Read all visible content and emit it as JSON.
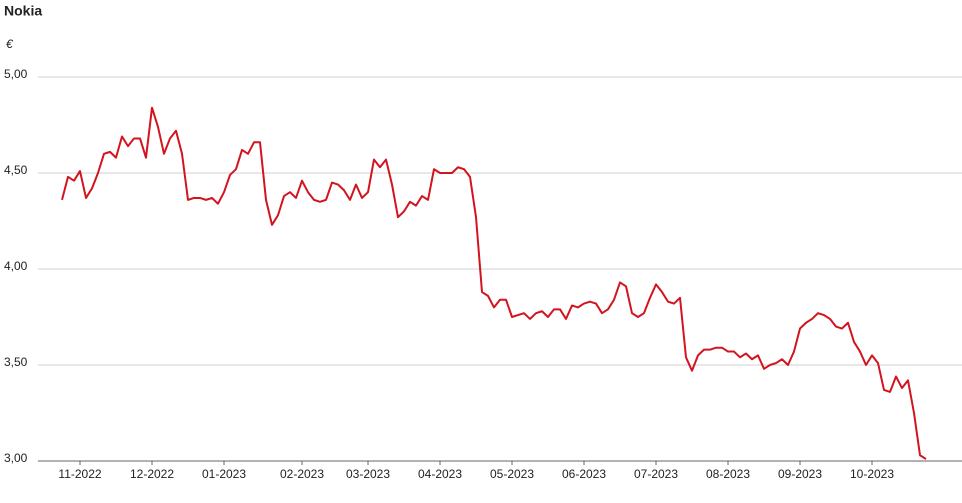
{
  "chart_data": {
    "type": "line",
    "title": "Nokia",
    "y_label": "€",
    "categories": [
      null,
      null,
      null,
      "11-2022",
      null,
      null,
      null,
      null,
      null,
      null,
      null,
      null,
      null,
      null,
      null,
      "12-2022",
      null,
      null,
      null,
      null,
      null,
      null,
      null,
      null,
      null,
      null,
      null,
      "01-2023",
      null,
      null,
      null,
      null,
      null,
      null,
      null,
      null,
      null,
      null,
      null,
      null,
      "02-2023",
      null,
      null,
      null,
      null,
      null,
      null,
      null,
      null,
      null,
      null,
      "03-2023",
      null,
      null,
      null,
      null,
      null,
      null,
      null,
      null,
      null,
      null,
      null,
      "04-2023",
      null,
      null,
      null,
      null,
      null,
      null,
      null,
      null,
      null,
      null,
      null,
      "05-2023",
      null,
      null,
      null,
      null,
      null,
      null,
      null,
      null,
      null,
      null,
      null,
      "06-2023",
      null,
      null,
      null,
      null,
      null,
      null,
      null,
      null,
      null,
      null,
      null,
      "07-2023",
      null,
      null,
      null,
      null,
      null,
      null,
      null,
      null,
      null,
      null,
      null,
      "08-2023",
      null,
      null,
      null,
      null,
      null,
      null,
      null,
      null,
      null,
      null,
      null,
      "09-2023",
      null,
      null,
      null,
      null,
      null,
      null,
      null,
      null,
      null,
      null,
      null,
      "10-2023",
      null,
      null,
      null,
      null,
      null,
      null,
      null,
      null,
      null
    ],
    "values": [
      4.36,
      4.48,
      4.46,
      4.51,
      4.37,
      4.42,
      4.5,
      4.6,
      4.61,
      4.58,
      4.69,
      4.64,
      4.68,
      4.68,
      4.58,
      4.84,
      4.74,
      4.6,
      4.68,
      4.72,
      4.6,
      4.36,
      4.37,
      4.37,
      4.36,
      4.37,
      4.34,
      4.4,
      4.49,
      4.52,
      4.62,
      4.6,
      4.66,
      4.66,
      4.36,
      4.23,
      4.28,
      4.38,
      4.4,
      4.37,
      4.46,
      4.4,
      4.36,
      4.35,
      4.36,
      4.45,
      4.44,
      4.41,
      4.36,
      4.44,
      4.37,
      4.4,
      4.57,
      4.53,
      4.57,
      4.44,
      4.27,
      4.3,
      4.35,
      4.33,
      4.38,
      4.36,
      4.52,
      4.5,
      4.5,
      4.5,
      4.53,
      4.52,
      4.48,
      4.27,
      3.88,
      3.86,
      3.8,
      3.84,
      3.84,
      3.75,
      3.76,
      3.77,
      3.74,
      3.77,
      3.78,
      3.75,
      3.79,
      3.79,
      3.74,
      3.81,
      3.8,
      3.82,
      3.83,
      3.82,
      3.77,
      3.79,
      3.84,
      3.93,
      3.91,
      3.77,
      3.75,
      3.77,
      3.85,
      3.92,
      3.88,
      3.83,
      3.82,
      3.85,
      3.54,
      3.47,
      3.55,
      3.58,
      3.58,
      3.59,
      3.59,
      3.57,
      3.57,
      3.54,
      3.56,
      3.53,
      3.55,
      3.48,
      3.5,
      3.51,
      3.53,
      3.5,
      3.57,
      3.69,
      3.72,
      3.74,
      3.77,
      3.76,
      3.74,
      3.7,
      3.69,
      3.72,
      3.62,
      3.57,
      3.5,
      3.55,
      3.51,
      3.37,
      3.36,
      3.44,
      3.38,
      3.42,
      3.25,
      3.03,
      3.01
    ],
    "color": "#d2141f",
    "ylim": [
      3,
      5
    ],
    "yticks": [
      {
        "value": 3,
        "label": "3,00"
      },
      {
        "value": 3.5,
        "label": "3,50"
      },
      {
        "value": 4,
        "label": "4,00"
      },
      {
        "value": 4.5,
        "label": "4,50"
      },
      {
        "value": 5,
        "label": "5,00"
      }
    ],
    "grid": true
  }
}
